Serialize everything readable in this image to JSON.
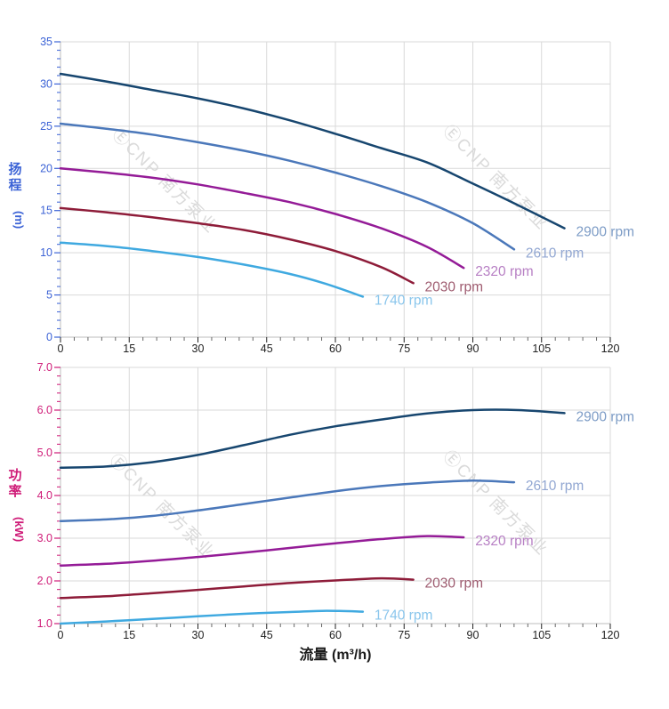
{
  "page": {
    "background": "#ffffff"
  },
  "watermark": {
    "text": "ⒺCNP 南方泵业",
    "color": "#dadada"
  },
  "chart_data": [
    {
      "type": "line",
      "title": "",
      "xlabel": "",
      "ylabel": "扬程 (m)",
      "ylabel_chars": [
        "扬",
        "程"
      ],
      "ylabel_unit": "(m)",
      "axis_color": "#3c63d6",
      "x_tick_color": "#222222",
      "grid": true,
      "grid_color": "#d9d9d9",
      "legend_position": "end-of-line-labels",
      "xlim": [
        0,
        120
      ],
      "ylim": [
        0,
        35
      ],
      "x_ticks": [
        0,
        15,
        30,
        45,
        60,
        75,
        90,
        105,
        120
      ],
      "y_ticks": [
        0,
        5,
        10,
        15,
        20,
        25,
        30,
        35
      ],
      "x_minor_step": 3,
      "y_minor_step": 1,
      "y_tick_decimals": 0,
      "series": [
        {
          "name": "2900 rpm",
          "color": "#17466f",
          "label_color": "#7d9cc6",
          "points": [
            [
              0,
              31.2
            ],
            [
              10,
              30.3
            ],
            [
              20,
              29.3
            ],
            [
              30,
              28.3
            ],
            [
              40,
              27.1
            ],
            [
              50,
              25.7
            ],
            [
              60,
              24.1
            ],
            [
              70,
              22.4
            ],
            [
              80,
              20.7
            ],
            [
              90,
              18.2
            ],
            [
              100,
              15.6
            ],
            [
              110,
              12.9
            ]
          ]
        },
        {
          "name": "2610 rpm",
          "color": "#4b78ba",
          "label_color": "#92a7d2",
          "points": [
            [
              0,
              25.3
            ],
            [
              10,
              24.7
            ],
            [
              20,
              24.0
            ],
            [
              30,
              23.1
            ],
            [
              40,
              22.1
            ],
            [
              50,
              20.9
            ],
            [
              60,
              19.5
            ],
            [
              70,
              17.9
            ],
            [
              80,
              16.0
            ],
            [
              90,
              13.5
            ],
            [
              99,
              10.4
            ]
          ]
        },
        {
          "name": "2320 rpm",
          "color": "#941b97",
          "label_color": "#b77fc4",
          "points": [
            [
              0,
              20.0
            ],
            [
              10,
              19.5
            ],
            [
              20,
              18.9
            ],
            [
              30,
              18.1
            ],
            [
              40,
              17.1
            ],
            [
              50,
              16.0
            ],
            [
              60,
              14.6
            ],
            [
              70,
              12.9
            ],
            [
              80,
              10.7
            ],
            [
              88,
              8.2
            ]
          ]
        },
        {
          "name": "2030 rpm",
          "color": "#8e1c39",
          "label_color": "#9e5b6f",
          "points": [
            [
              0,
              15.3
            ],
            [
              10,
              14.8
            ],
            [
              20,
              14.2
            ],
            [
              30,
              13.5
            ],
            [
              40,
              12.7
            ],
            [
              50,
              11.6
            ],
            [
              60,
              10.2
            ],
            [
              70,
              8.3
            ],
            [
              77,
              6.4
            ]
          ]
        },
        {
          "name": "1740 rpm",
          "color": "#3fa9e0",
          "label_color": "#8ac6ec",
          "points": [
            [
              0,
              11.2
            ],
            [
              10,
              10.8
            ],
            [
              20,
              10.2
            ],
            [
              30,
              9.5
            ],
            [
              40,
              8.6
            ],
            [
              50,
              7.5
            ],
            [
              58,
              6.3
            ],
            [
              66,
              4.8
            ]
          ]
        }
      ]
    },
    {
      "type": "line",
      "title": "",
      "xlabel": "流量 (m³/h)",
      "xlabel_color": "#1a1a1a",
      "ylabel": "功率 (kW)",
      "ylabel_chars": [
        "功",
        "率"
      ],
      "ylabel_unit": "(kW)",
      "axis_color": "#cf1c78",
      "x_tick_color": "#222222",
      "grid": true,
      "grid_color": "#d9d9d9",
      "legend_position": "end-of-line-labels",
      "xlim": [
        0,
        120
      ],
      "ylim": [
        1.0,
        7.0
      ],
      "x_ticks": [
        0,
        15,
        30,
        45,
        60,
        75,
        90,
        105,
        120
      ],
      "y_ticks": [
        1.0,
        2.0,
        3.0,
        4.0,
        5.0,
        6.0,
        7.0
      ],
      "x_minor_step": 3,
      "y_minor_step": 0.2,
      "y_tick_decimals": 1,
      "series": [
        {
          "name": "2900 rpm",
          "color": "#17466f",
          "label_color": "#7d9cc6",
          "points": [
            [
              0,
              4.65
            ],
            [
              10,
              4.68
            ],
            [
              20,
              4.78
            ],
            [
              30,
              4.95
            ],
            [
              40,
              5.18
            ],
            [
              50,
              5.42
            ],
            [
              60,
              5.62
            ],
            [
              70,
              5.78
            ],
            [
              80,
              5.92
            ],
            [
              90,
              6.0
            ],
            [
              100,
              6.0
            ],
            [
              110,
              5.93
            ]
          ]
        },
        {
          "name": "2610 rpm",
          "color": "#4b78ba",
          "label_color": "#92a7d2",
          "points": [
            [
              0,
              3.4
            ],
            [
              10,
              3.44
            ],
            [
              20,
              3.52
            ],
            [
              30,
              3.65
            ],
            [
              40,
              3.8
            ],
            [
              50,
              3.95
            ],
            [
              60,
              4.1
            ],
            [
              70,
              4.22
            ],
            [
              80,
              4.3
            ],
            [
              90,
              4.35
            ],
            [
              99,
              4.31
            ]
          ]
        },
        {
          "name": "2320 rpm",
          "color": "#941b97",
          "label_color": "#b77fc4",
          "points": [
            [
              0,
              2.36
            ],
            [
              10,
              2.4
            ],
            [
              20,
              2.47
            ],
            [
              30,
              2.56
            ],
            [
              40,
              2.66
            ],
            [
              50,
              2.77
            ],
            [
              60,
              2.88
            ],
            [
              70,
              2.98
            ],
            [
              80,
              3.05
            ],
            [
              88,
              3.02
            ]
          ]
        },
        {
          "name": "2030 rpm",
          "color": "#8e1c39",
          "label_color": "#9e5b6f",
          "points": [
            [
              0,
              1.6
            ],
            [
              10,
              1.64
            ],
            [
              20,
              1.71
            ],
            [
              30,
              1.79
            ],
            [
              40,
              1.87
            ],
            [
              50,
              1.95
            ],
            [
              60,
              2.01
            ],
            [
              70,
              2.06
            ],
            [
              77,
              2.03
            ]
          ]
        },
        {
          "name": "1740 rpm",
          "color": "#3fa9e0",
          "label_color": "#8ac6ec",
          "points": [
            [
              0,
              1.0
            ],
            [
              10,
              1.05
            ],
            [
              20,
              1.11
            ],
            [
              30,
              1.17
            ],
            [
              40,
              1.23
            ],
            [
              50,
              1.27
            ],
            [
              58,
              1.3
            ],
            [
              66,
              1.28
            ]
          ]
        }
      ]
    }
  ]
}
